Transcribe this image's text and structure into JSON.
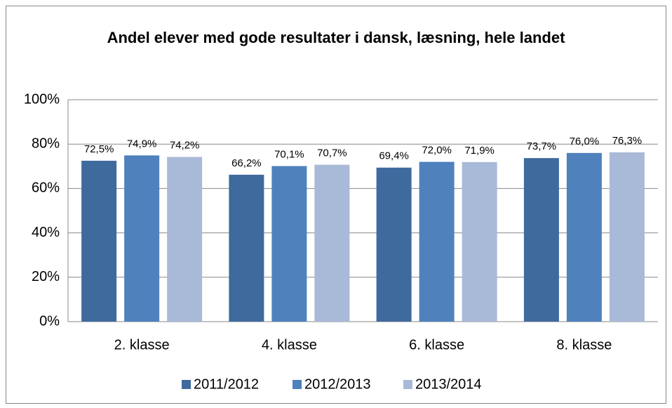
{
  "chart_data": {
    "type": "bar",
    "title": "Andel elever med gode resultater i dansk, læsning, hele landet",
    "categories": [
      "2. klasse",
      "4. klasse",
      "6. klasse",
      "8. klasse"
    ],
    "series": [
      {
        "name": "2011/2012",
        "color": "#3f6a9e",
        "values": [
          72.5,
          66.2,
          69.4,
          73.7
        ],
        "value_labels": [
          "72,5%",
          "66,2%",
          "69,4%",
          "73,7%"
        ]
      },
      {
        "name": "2012/2013",
        "color": "#4f81bd",
        "values": [
          74.9,
          70.1,
          72.0,
          76.0
        ],
        "value_labels": [
          "74,9%",
          "70,1%",
          "72,0%",
          "76,0%"
        ]
      },
      {
        "name": "2013/2014",
        "color": "#a9b9d8",
        "values": [
          74.2,
          70.7,
          71.9,
          76.3
        ],
        "value_labels": [
          "74,2%",
          "70,7%",
          "71,9%",
          "76,3%"
        ]
      }
    ],
    "ylim": [
      0,
      100
    ],
    "yticks": [
      {
        "value": 0,
        "label": "0%"
      },
      {
        "value": 20,
        "label": "20%"
      },
      {
        "value": 40,
        "label": "40%"
      },
      {
        "value": 60,
        "label": "60%"
      },
      {
        "value": 80,
        "label": "80%"
      },
      {
        "value": 100,
        "label": "100%"
      }
    ],
    "grid": true,
    "legend": "bottom"
  }
}
